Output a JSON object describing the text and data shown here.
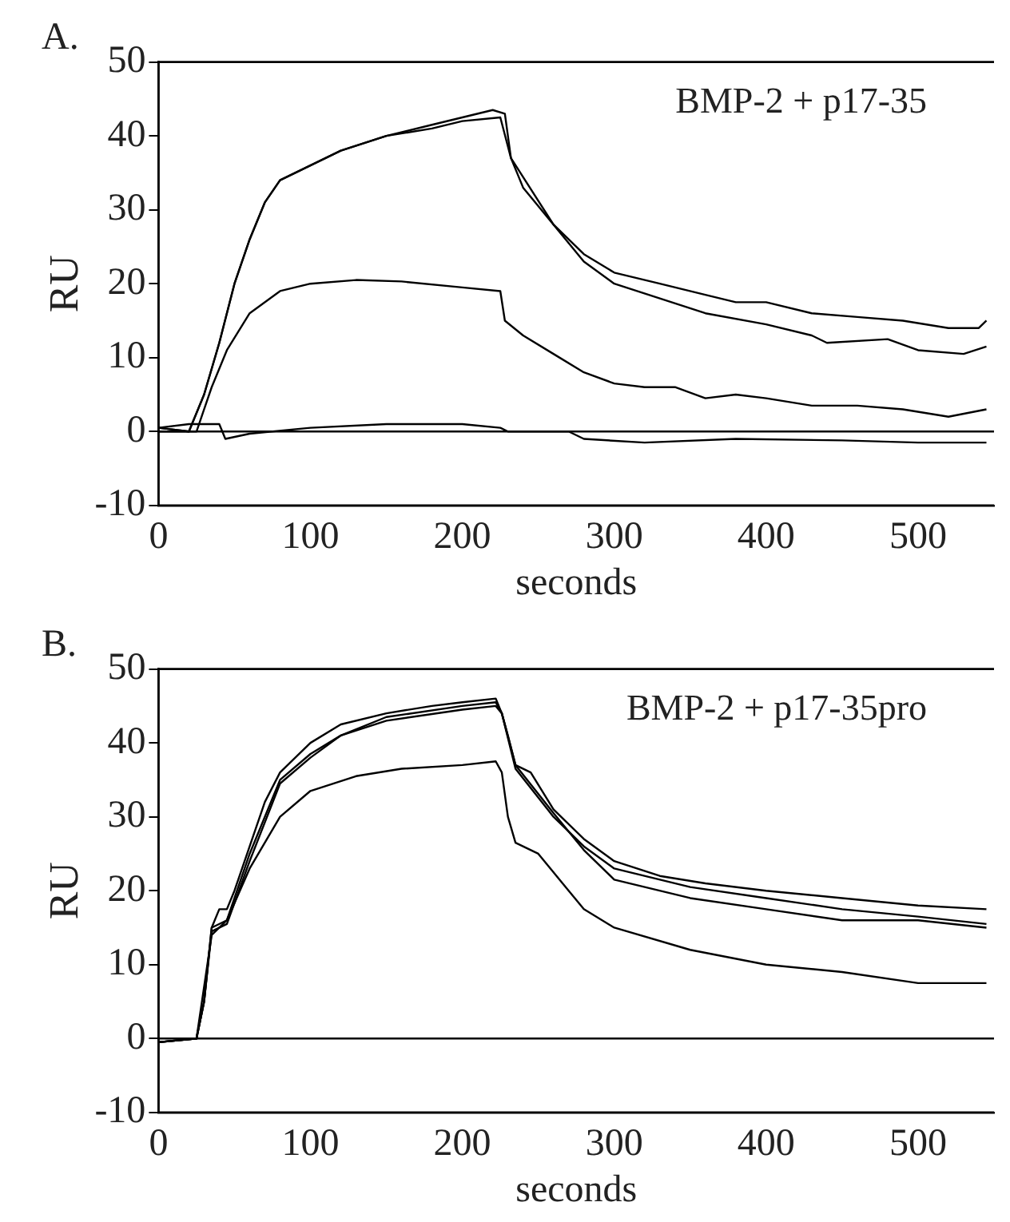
{
  "chart_data": [
    {
      "type": "line",
      "title": "A.",
      "xlabel": "seconds",
      "ylabel": "RU",
      "annotations": [
        "BMP-2 + p17-35"
      ],
      "xlim": [
        0,
        550
      ],
      "xticks": [
        0,
        100,
        200,
        300,
        400,
        500
      ],
      "ylim": [
        -10,
        50
      ],
      "yticks": [
        -10,
        0,
        10,
        20,
        30,
        40,
        50
      ],
      "grid": false,
      "legend": false,
      "marker": "none",
      "line_style": "solid",
      "ref_lines": [
        {
          "axis": "y",
          "value": 0,
          "color": "#000000"
        }
      ],
      "series": [
        {
          "color": "#000000",
          "x": [
            0,
            20,
            30,
            40,
            50,
            60,
            70,
            80,
            100,
            120,
            150,
            180,
            200,
            220,
            228,
            232,
            240,
            260,
            280,
            300,
            330,
            360,
            380,
            400,
            430,
            460,
            490,
            520,
            540,
            545
          ],
          "values": [
            0.5,
            0,
            5,
            12,
            20,
            26,
            31,
            34,
            36,
            38,
            40,
            41.5,
            42.5,
            43.5,
            43,
            37,
            33,
            28,
            24,
            21.5,
            20,
            18.5,
            17.5,
            17.5,
            16,
            15.5,
            15,
            14,
            14,
            15
          ]
        },
        {
          "color": "#000000",
          "x": [
            0,
            20,
            30,
            40,
            50,
            60,
            70,
            80,
            100,
            120,
            150,
            180,
            200,
            225,
            232,
            260,
            280,
            300,
            330,
            360,
            400,
            430,
            440,
            480,
            500,
            530,
            545
          ],
          "values": [
            0.5,
            0,
            5,
            12,
            20,
            26,
            31,
            34,
            36,
            38,
            40,
            41,
            42,
            42.5,
            37,
            28,
            23,
            20,
            18,
            16,
            14.5,
            13,
            12,
            12.5,
            11,
            10.5,
            11.5
          ]
        },
        {
          "color": "#000000",
          "x": [
            0,
            25,
            35,
            45,
            60,
            80,
            100,
            130,
            160,
            200,
            225,
            228,
            240,
            260,
            280,
            300,
            320,
            340,
            360,
            380,
            400,
            430,
            460,
            490,
            520,
            545
          ],
          "values": [
            0,
            0,
            6,
            11,
            16,
            19,
            20,
            20.5,
            20.3,
            19.5,
            19,
            15,
            13,
            10.5,
            8,
            6.5,
            6,
            6,
            4.5,
            5,
            4.5,
            3.5,
            3.5,
            3,
            2,
            3
          ]
        },
        {
          "color": "#000000",
          "x": [
            0,
            20,
            40,
            44,
            60,
            100,
            150,
            200,
            225,
            230,
            270,
            280,
            320,
            380,
            450,
            500,
            545
          ],
          "values": [
            0.5,
            1,
            1,
            -1,
            -0.3,
            0.5,
            1,
            1,
            0.5,
            0,
            0,
            -1,
            -1.5,
            -1,
            -1.2,
            -1.5,
            -1.5
          ]
        }
      ]
    },
    {
      "type": "line",
      "title": "B.",
      "xlabel": "seconds",
      "ylabel": "RU",
      "annotations": [
        "BMP-2 + p17-35pro"
      ],
      "xlim": [
        0,
        550
      ],
      "xticks": [
        0,
        100,
        200,
        300,
        400,
        500
      ],
      "ylim": [
        -10,
        50
      ],
      "yticks": [
        -10,
        0,
        10,
        20,
        30,
        40,
        50
      ],
      "grid": false,
      "legend": false,
      "marker": "none",
      "line_style": "solid",
      "ref_lines": [
        {
          "axis": "y",
          "value": 0,
          "color": "#000000"
        }
      ],
      "series": [
        {
          "color": "#000000",
          "x": [
            0,
            25,
            30,
            35,
            40,
            45,
            50,
            60,
            70,
            80,
            100,
            120,
            150,
            180,
            200,
            222,
            226,
            230,
            235,
            245,
            260,
            280,
            300,
            330,
            360,
            400,
            450,
            500,
            545
          ],
          "values": [
            -0.5,
            0,
            5,
            15,
            17.5,
            17.5,
            20,
            26,
            32,
            36,
            40,
            42.5,
            44,
            45,
            45.5,
            46,
            44,
            41,
            37,
            36,
            31,
            27,
            24,
            22,
            21,
            20,
            19,
            18,
            17.5
          ]
        },
        {
          "color": "#000000",
          "x": [
            0,
            25,
            30,
            35,
            45,
            60,
            80,
            100,
            120,
            150,
            200,
            222,
            226,
            235,
            260,
            280,
            300,
            350,
            400,
            450,
            500,
            545
          ],
          "values": [
            -0.5,
            0,
            5,
            15,
            16,
            25,
            35,
            38.5,
            41,
            43.5,
            45,
            45.5,
            44,
            36.5,
            30,
            26,
            23,
            20.5,
            19,
            17.5,
            16.5,
            15.5
          ]
        },
        {
          "color": "#000000",
          "x": [
            0,
            25,
            30,
            35,
            45,
            60,
            80,
            100,
            120,
            150,
            200,
            222,
            226,
            235,
            260,
            280,
            300,
            350,
            400,
            450,
            500,
            545
          ],
          "values": [
            -0.5,
            0,
            5,
            14.5,
            15.5,
            24,
            34.5,
            38,
            41,
            43,
            44.5,
            45,
            44,
            37,
            30.5,
            25.5,
            21.5,
            19,
            17.5,
            16,
            16,
            15
          ]
        },
        {
          "color": "#000000",
          "x": [
            0,
            25,
            35,
            45,
            60,
            80,
            100,
            130,
            160,
            200,
            222,
            226,
            230,
            235,
            250,
            270,
            280,
            300,
            350,
            400,
            450,
            500,
            545
          ],
          "values": [
            -0.5,
            0,
            14,
            16,
            23,
            30,
            33.5,
            35.5,
            36.5,
            37,
            37.5,
            36,
            30,
            26.5,
            25,
            20,
            17.5,
            15,
            12,
            10,
            9,
            7.5,
            7.5
          ]
        }
      ]
    }
  ]
}
